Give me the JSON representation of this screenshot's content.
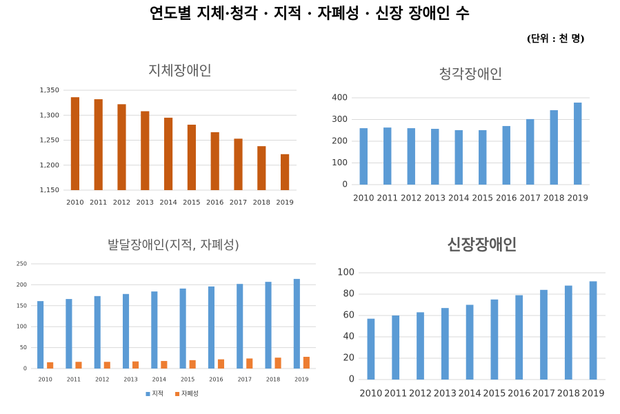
{
  "title": "연도별 지체·청각 · 지적 · 자폐성 · 신장 장애인 수",
  "unit": "(단위 : 천 명)",
  "chart_data": [
    {
      "type": "bar",
      "title": "지체장애인",
      "categories": [
        "2010",
        "2011",
        "2012",
        "2013",
        "2014",
        "2015",
        "2016",
        "2017",
        "2018",
        "2019"
      ],
      "values": [
        1336,
        1332,
        1322,
        1308,
        1295,
        1281,
        1266,
        1253,
        1238,
        1222
      ],
      "color": "#c55a11",
      "ylim": [
        1150,
        1350
      ],
      "yticks": [
        {
          "value": 1150,
          "label": "1,150"
        },
        {
          "value": 1200,
          "label": "1,200"
        },
        {
          "value": 1250,
          "label": "1,250"
        },
        {
          "value": 1300,
          "label": "1,300"
        },
        {
          "value": 1350,
          "label": "1,350"
        }
      ],
      "grid": true
    },
    {
      "type": "bar",
      "title": "청각장애인",
      "categories": [
        "2010",
        "2011",
        "2012",
        "2013",
        "2014",
        "2015",
        "2016",
        "2017",
        "2018",
        "2019"
      ],
      "values": [
        260,
        263,
        260,
        257,
        251,
        251,
        270,
        302,
        343,
        378
      ],
      "color": "#5b9bd5",
      "ylim": [
        0,
        400
      ],
      "yticks": [
        0,
        100,
        200,
        300,
        400
      ],
      "grid": true
    },
    {
      "type": "bar",
      "title": "발달장애인(지적, 자폐성)",
      "categories": [
        "2010",
        "2011",
        "2012",
        "2013",
        "2014",
        "2015",
        "2016",
        "2017",
        "2018",
        "2019"
      ],
      "series": [
        {
          "name": "지적",
          "color": "#5b9bd5",
          "values": [
            161,
            166,
            173,
            178,
            184,
            191,
            196,
            202,
            207,
            214
          ]
        },
        {
          "name": "자폐성",
          "color": "#ed7d31",
          "values": [
            15,
            16,
            16,
            17,
            18,
            20,
            22,
            24,
            26,
            28
          ]
        }
      ],
      "ylim": [
        0,
        250
      ],
      "yticks": [
        0,
        50,
        100,
        150,
        200,
        250
      ],
      "grid": true,
      "legend": "bottom"
    },
    {
      "type": "bar",
      "title": "신장장애인",
      "categories": [
        "2010",
        "2011",
        "2012",
        "2013",
        "2014",
        "2015",
        "2016",
        "2017",
        "2018",
        "2019"
      ],
      "values": [
        57,
        60,
        63,
        67,
        70,
        75,
        79,
        84,
        88,
        92
      ],
      "color": "#5b9bd5",
      "ylim": [
        0,
        100
      ],
      "yticks": [
        0,
        20,
        40,
        60,
        80,
        100
      ],
      "grid": true
    }
  ]
}
